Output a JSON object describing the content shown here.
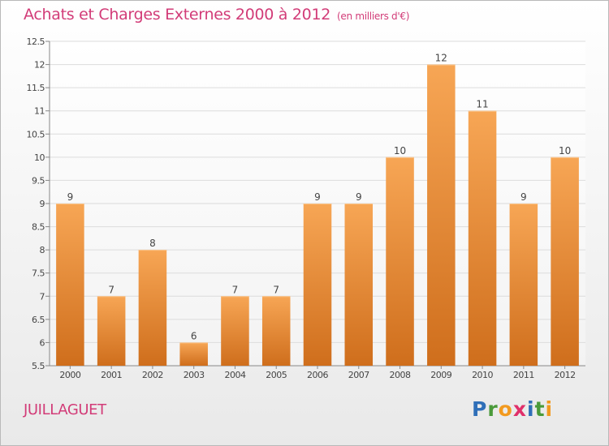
{
  "header": {
    "title": "Achats et Charges Externes 2000 à 2012",
    "unit": "(en milliers d'€)"
  },
  "footer": {
    "commune": "JUILLAGUET",
    "logo_letters": [
      "P",
      "r",
      "o",
      "x",
      "i",
      "t",
      "i"
    ],
    "logo_colors": [
      "#2f6fb8",
      "#4a9a3a",
      "#f29a1f",
      "#e0306a",
      "#2f6fb8",
      "#4a9a3a",
      "#f29a1f"
    ]
  },
  "chart_data": {
    "type": "bar",
    "title": "Achats et Charges Externes 2000 à 2012",
    "subtitle": "(en milliers d'€)",
    "xlabel": "",
    "ylabel": "",
    "categories": [
      "2000",
      "2001",
      "2002",
      "2003",
      "2004",
      "2005",
      "2006",
      "2007",
      "2008",
      "2009",
      "2010",
      "2011",
      "2012"
    ],
    "values": [
      9,
      7,
      8,
      6,
      7,
      7,
      9,
      9,
      10,
      12,
      11,
      9,
      10
    ],
    "data_labels": [
      "9",
      "7",
      "8",
      "6",
      "7",
      "7",
      "9",
      "9",
      "10",
      "12",
      "11",
      "9",
      "10"
    ],
    "ylim": [
      5.5,
      12.5
    ],
    "yticks": [
      "5.5",
      "6",
      "6.5",
      "7",
      "7.5",
      "8",
      "8.5",
      "9",
      "9.5",
      "10",
      "10.5",
      "11",
      "11.5",
      "12",
      "12.5"
    ],
    "grid": true,
    "legend": "none",
    "bar_color_top": "#f7a655",
    "bar_color_bottom": "#cf6e1c"
  }
}
